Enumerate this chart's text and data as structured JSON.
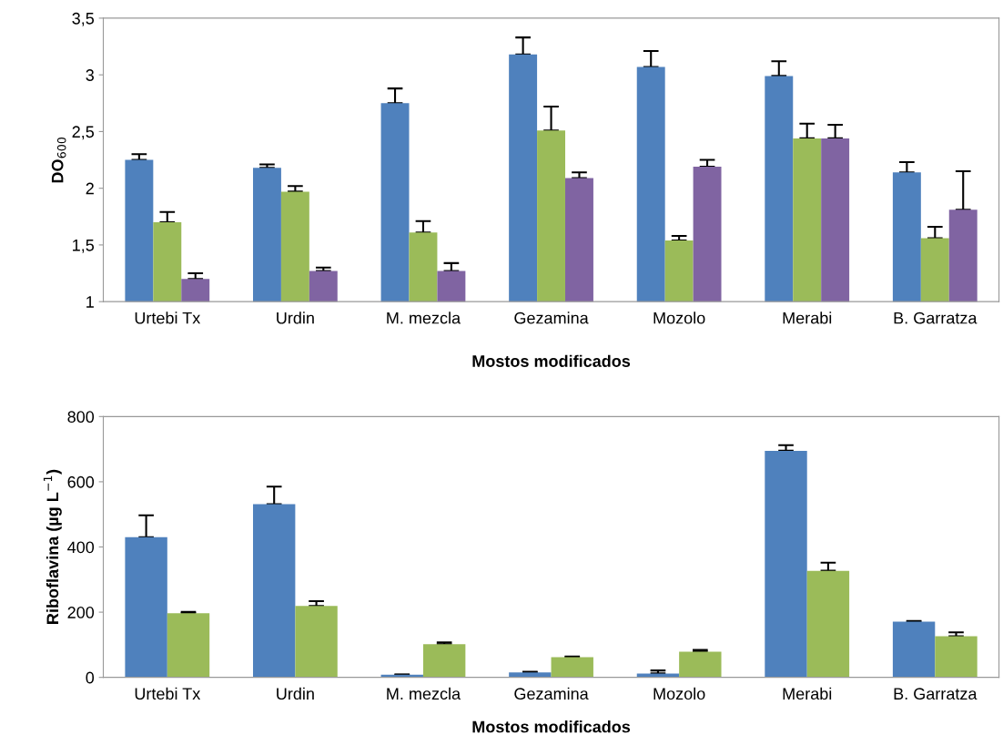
{
  "chart_data": [
    {
      "type": "bar",
      "ylabel": "DO$_{600}$",
      "xlabel": "Mostos modificados",
      "categories": [
        "Urtebi Tx",
        "Urdin",
        "M. mezcla",
        "Gezamina",
        "Mozolo",
        "Merabi",
        "B. Garratza"
      ],
      "ylim": [
        1,
        3.5
      ],
      "yticks": [
        1,
        {
          "value": 1.5,
          "label": "1,5"
        },
        2,
        {
          "value": 2.5,
          "label": "2,5"
        },
        3,
        {
          "value": 3.5,
          "label": "3,5"
        }
      ],
      "grid": false,
      "legend": false,
      "series": [
        {
          "color": "#4f81bd",
          "values": [
            2.25,
            2.18,
            2.75,
            3.18,
            3.07,
            2.99,
            2.14
          ],
          "errors": [
            [
              2.25,
              2.3
            ],
            [
              2.18,
              2.21
            ],
            [
              2.75,
              2.88
            ],
            [
              3.18,
              3.33
            ],
            [
              3.07,
              3.21
            ],
            [
              2.99,
              3.12
            ],
            [
              2.14,
              2.23
            ]
          ]
        },
        {
          "color": "#9bbb59",
          "values": [
            1.7,
            1.97,
            1.61,
            2.51,
            1.54,
            2.44,
            1.56
          ],
          "errors": [
            [
              1.7,
              1.79
            ],
            [
              1.97,
              2.02
            ],
            [
              1.61,
              1.71
            ],
            [
              2.51,
              2.72
            ],
            [
              1.54,
              1.58
            ],
            [
              2.44,
              2.57
            ],
            [
              1.56,
              1.66
            ]
          ]
        },
        {
          "color": "#8064a2",
          "values": [
            1.2,
            1.27,
            1.27,
            2.09,
            2.19,
            2.44,
            1.81
          ],
          "errors": [
            [
              1.2,
              1.25
            ],
            [
              1.27,
              1.3
            ],
            [
              1.27,
              1.34
            ],
            [
              2.09,
              2.14
            ],
            [
              2.19,
              2.25
            ],
            [
              2.44,
              2.56
            ],
            [
              1.81,
              2.15
            ]
          ]
        }
      ]
    },
    {
      "type": "bar",
      "ylabel": "Riboflavina (µg L$^{−1}$)",
      "xlabel": "Mostos modificados",
      "categories": [
        "Urtebi Tx",
        "Urdin",
        "M. mezcla",
        "Gezamina",
        "Mozolo",
        "Merabi",
        "B. Garratza"
      ],
      "ylim": [
        0,
        800
      ],
      "yticks": [
        0,
        200,
        400,
        600,
        800
      ],
      "grid": false,
      "legend": false,
      "series": [
        {
          "color": "#4f81bd",
          "values": [
            430,
            531,
            8,
            15,
            12,
            695,
            171
          ],
          "errors": [
            [
              430,
              497
            ],
            [
              531,
              585
            ],
            [
              8,
              9
            ],
            [
              15,
              17
            ],
            [
              12,
              21
            ],
            [
              695,
              712
            ],
            [
              171,
              173
            ]
          ]
        },
        {
          "color": "#9bbb59",
          "values": [
            197,
            219,
            102,
            62,
            79,
            327,
            126
          ],
          "errors": [
            [
              197,
              201
            ],
            [
              219,
              234
            ],
            [
              102,
              107
            ],
            [
              62,
              64
            ],
            [
              79,
              84
            ],
            [
              327,
              352
            ],
            [
              126,
              138
            ]
          ]
        }
      ]
    }
  ]
}
